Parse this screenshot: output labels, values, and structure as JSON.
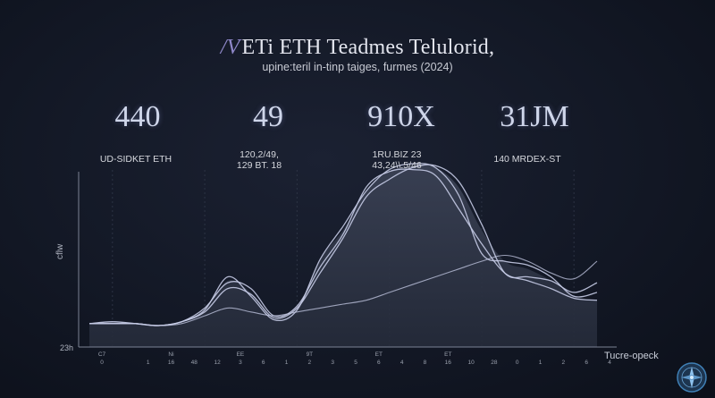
{
  "header": {
    "title_mark": "/V",
    "title": "ETi ETH Teadmes Telulorid,",
    "subtitle": "upine:teril in-tinp taiges, furmes (2024)"
  },
  "stats": [
    {
      "value": "440",
      "label": [
        "UD-SIDKET ETH"
      ]
    },
    {
      "value": "49",
      "label": [
        "120,2/49,",
        "129 BT. 18"
      ]
    },
    {
      "value": "910X",
      "label": [
        "1RU.BIZ 23",
        "43,24\\\\.5/46"
      ]
    },
    {
      "value": "31JM",
      "label": [
        "140 MRDEX-ST"
      ]
    }
  ],
  "chart_data": {
    "type": "line",
    "ylabel": "cflw",
    "y_min_label": "23h",
    "ylim": [
      0,
      100
    ],
    "x": [
      0,
      1,
      2,
      3,
      4,
      5,
      6,
      7,
      8,
      9,
      10,
      11,
      12,
      13,
      14,
      15,
      16,
      17,
      18,
      19,
      20,
      21,
      22
    ],
    "x_ticks_top": [
      "C7",
      "",
      "",
      "Ni",
      "",
      "",
      "EE",
      "",
      "",
      "9T",
      "",
      "",
      "ET",
      "",
      "",
      "ET",
      "",
      "",
      "",
      "",
      "",
      "",
      ""
    ],
    "x_ticks_bottom": [
      "0",
      "",
      "1",
      "16",
      "48",
      "12",
      "3",
      "6",
      "1",
      "2",
      "3",
      "5",
      "6",
      "4",
      "8",
      "16",
      "10",
      "28",
      "0",
      "1",
      "2",
      "6",
      "4"
    ],
    "series": [
      {
        "values": [
          12,
          13,
          12,
          11,
          13,
          19,
          36,
          26,
          14,
          19,
          45,
          62,
          80,
          91,
          94,
          92,
          78,
          48,
          44,
          42,
          36,
          26,
          28
        ]
      },
      {
        "values": [
          12,
          12,
          12,
          11,
          13,
          20,
          33,
          30,
          16,
          21,
          41,
          58,
          82,
          90,
          91,
          88,
          71,
          53,
          38,
          34,
          30,
          25,
          24
        ]
      },
      {
        "values": [
          12,
          12,
          12,
          11,
          13,
          18,
          30,
          27,
          15,
          20,
          38,
          56,
          77,
          86,
          92,
          93,
          85,
          63,
          38,
          36,
          34,
          28,
          33
        ]
      },
      {
        "values": [
          12,
          12,
          12,
          11,
          12,
          16,
          20,
          18,
          16,
          18,
          20,
          22,
          24,
          28,
          32,
          36,
          40,
          44,
          47,
          44,
          38,
          35,
          44
        ]
      }
    ],
    "area_values": [
      12,
      13,
      12,
      11,
      13,
      19,
      34,
      28,
      15,
      20,
      45,
      60,
      80,
      90,
      93,
      92,
      82,
      60,
      44,
      40,
      34,
      26,
      24
    ],
    "grid": true,
    "colors": {
      "line": "#c5cbe6",
      "area_top": "#3a4154",
      "area_bottom": "#252b3a",
      "grid": "#2c3344"
    }
  },
  "badge": {
    "label": "Tucre-opeck",
    "icon": "compass-icon"
  }
}
